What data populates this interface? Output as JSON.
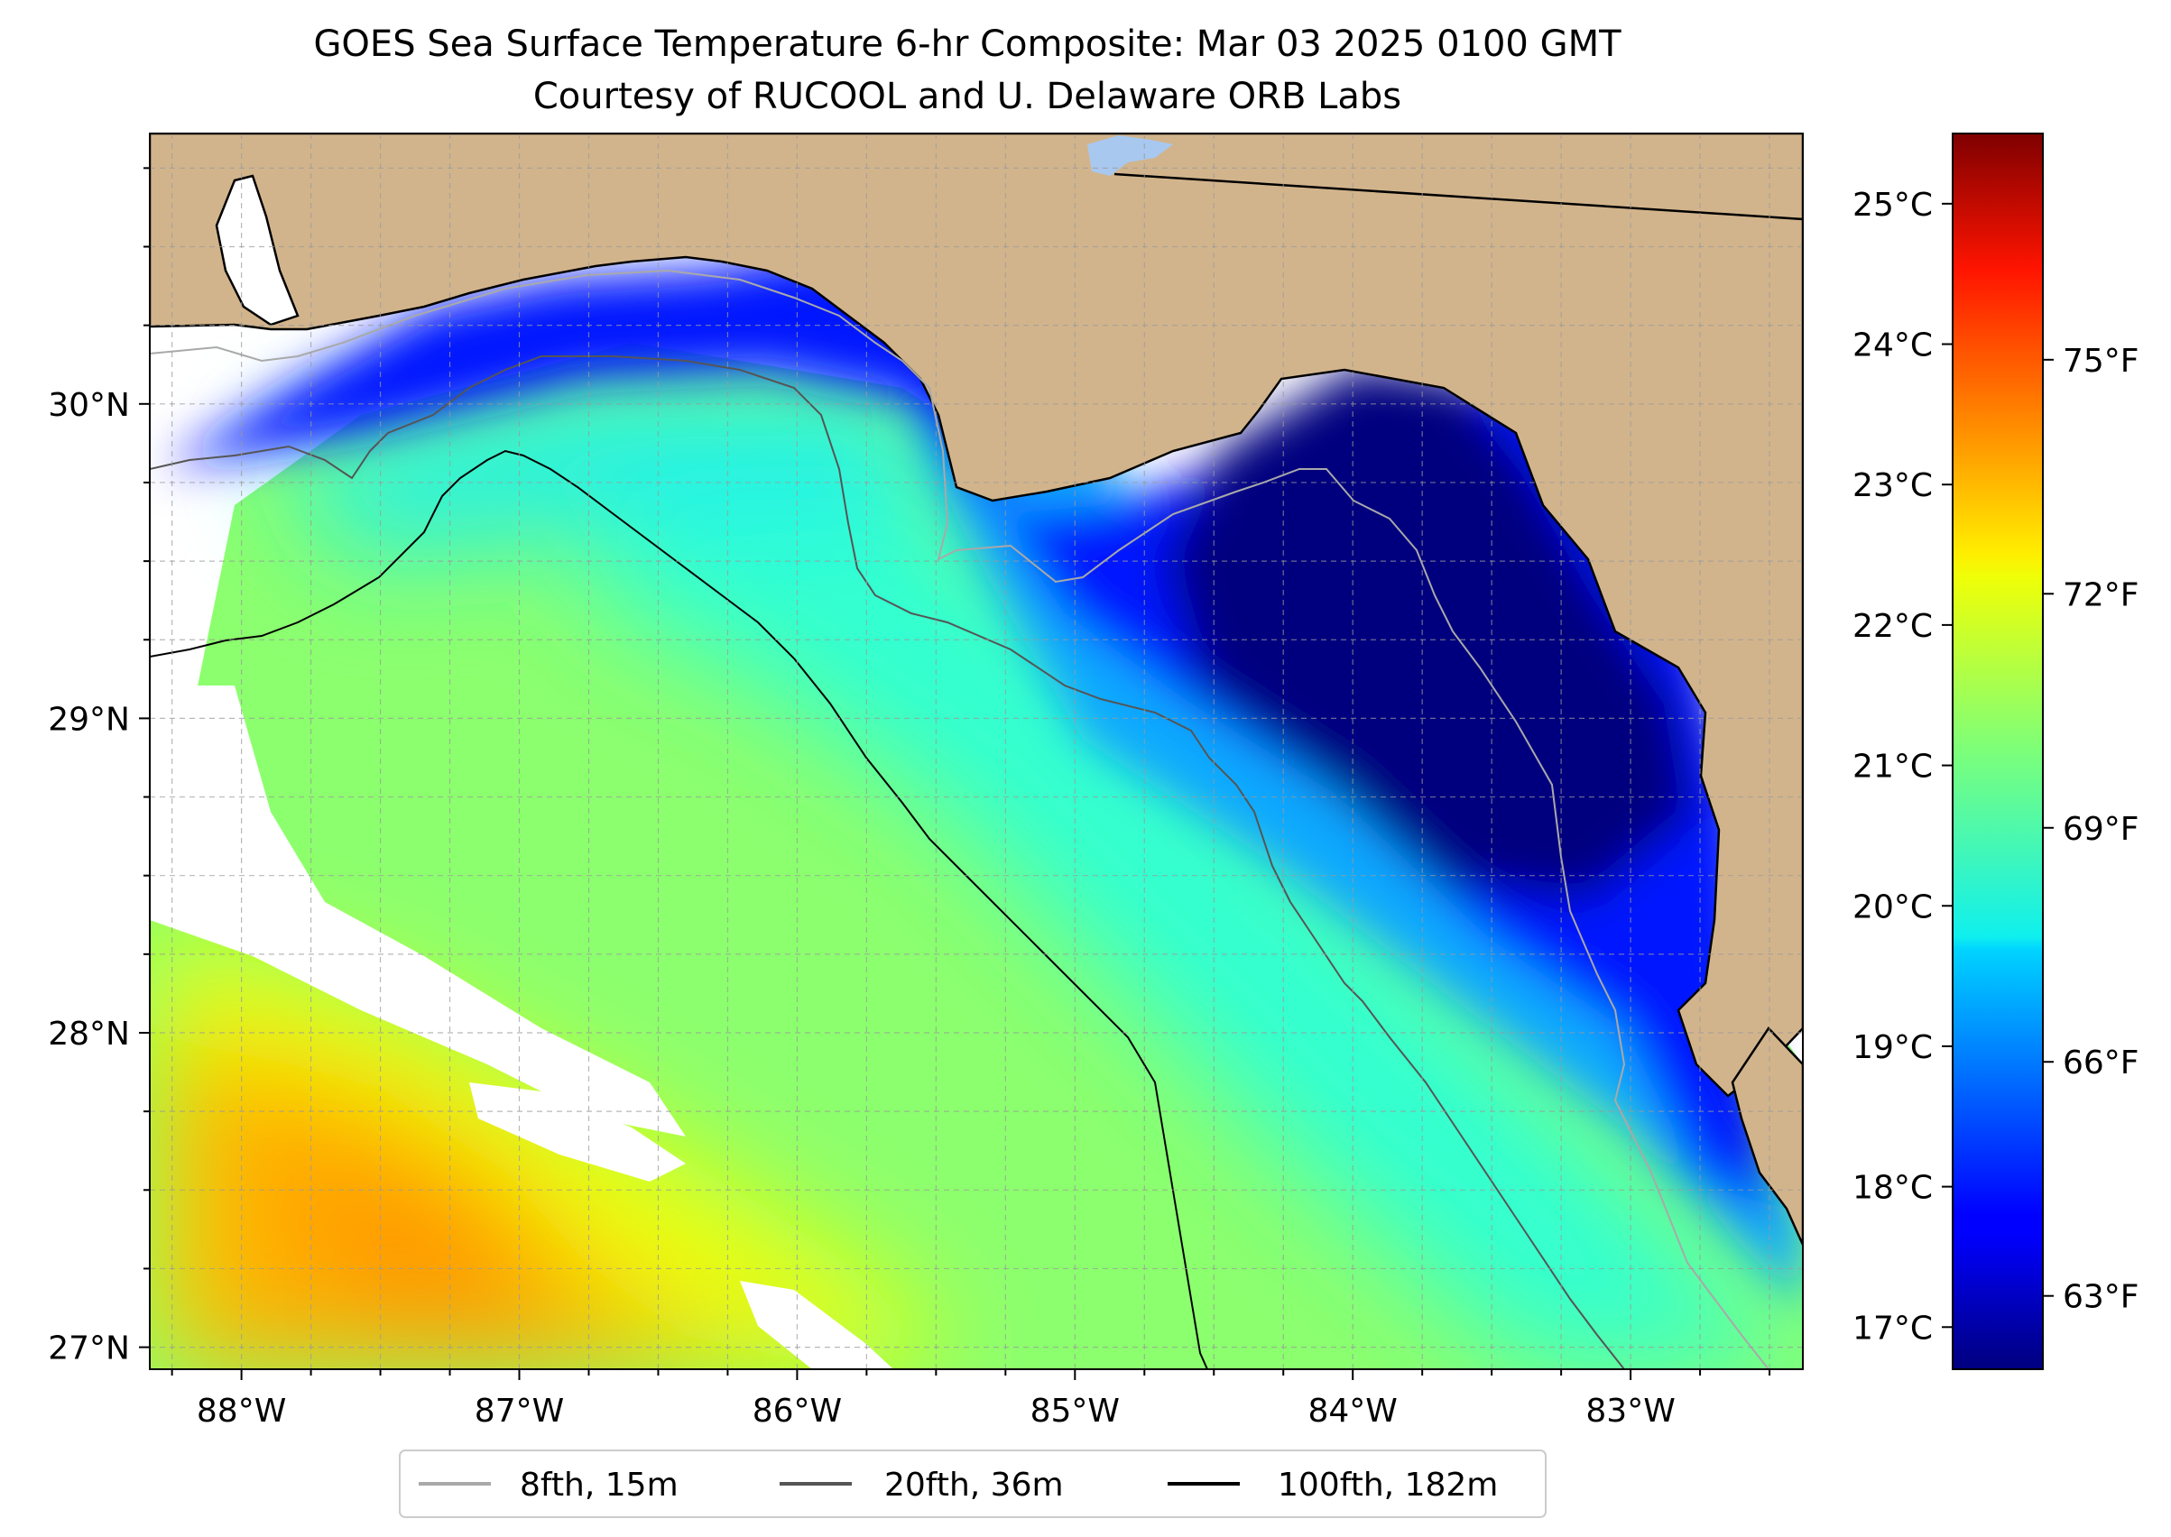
{
  "title": {
    "line1": "GOES Sea Surface Temperature 6-hr Composite: Mar 03 2025 0100 GMT",
    "line2": "Courtesy of RUCOOL and U. Delaware ORB Labs"
  },
  "map": {
    "lon_range": [
      -88.33,
      -82.38
    ],
    "lat_range": [
      26.93,
      30.86
    ],
    "lon_ticks": [
      {
        "value": -88,
        "label": "88°W"
      },
      {
        "value": -87,
        "label": "87°W"
      },
      {
        "value": -86,
        "label": "86°W"
      },
      {
        "value": -85,
        "label": "85°W"
      },
      {
        "value": -84,
        "label": "84°W"
      },
      {
        "value": -83,
        "label": "83°W"
      }
    ],
    "lat_ticks": [
      {
        "value": 27,
        "label": "27°N"
      },
      {
        "value": 28,
        "label": "28°N"
      },
      {
        "value": 29,
        "label": "29°N"
      },
      {
        "value": 30,
        "label": "30°N"
      }
    ],
    "grid": true,
    "land_color": "#d2b48c",
    "no_data_color": "#ffffff"
  },
  "legend": {
    "placement": "bottom-center",
    "items": [
      {
        "label": "8fth, 15m",
        "color": "#a9a9a9"
      },
      {
        "label": "20fth, 36m",
        "color": "#555555"
      },
      {
        "label": "100fth, 182m",
        "color": "#000000"
      }
    ]
  },
  "colorbar": {
    "colormap": "jet",
    "range_c": [
      16.7,
      25.5
    ],
    "celsius_ticks": [
      {
        "value": 17,
        "label": "17°C"
      },
      {
        "value": 18,
        "label": "18°C"
      },
      {
        "value": 19,
        "label": "19°C"
      },
      {
        "value": 20,
        "label": "20°C"
      },
      {
        "value": 21,
        "label": "21°C"
      },
      {
        "value": 22,
        "label": "22°C"
      },
      {
        "value": 23,
        "label": "23°C"
      },
      {
        "value": 24,
        "label": "24°C"
      },
      {
        "value": 25,
        "label": "25°C"
      }
    ],
    "fahrenheit_ticks": [
      {
        "value": 63,
        "label": "63°F"
      },
      {
        "value": 66,
        "label": "66°F"
      },
      {
        "value": 69,
        "label": "69°F"
      },
      {
        "value": 72,
        "label": "72°F"
      },
      {
        "value": 75,
        "label": "75°F"
      }
    ]
  }
}
